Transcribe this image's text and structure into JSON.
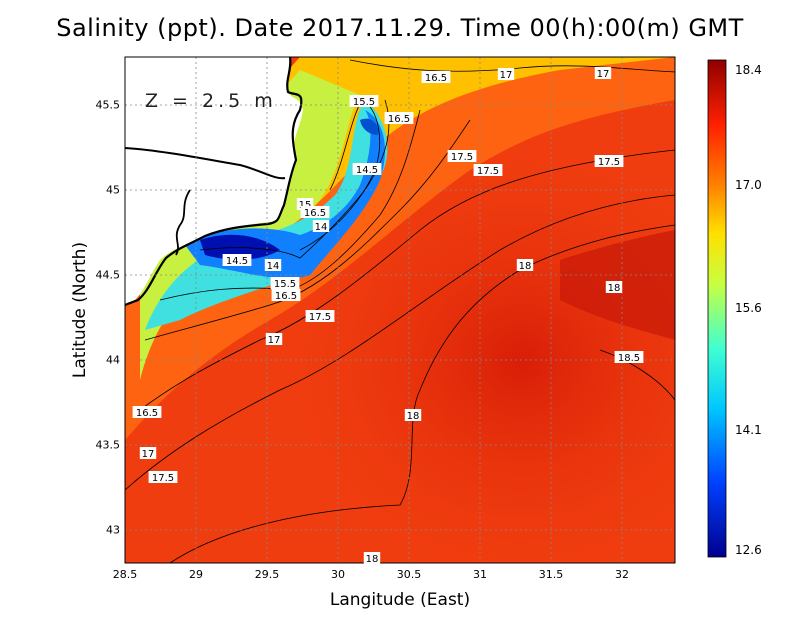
{
  "title": "Salinity (ppt). Date 2017.11.29. Time 00(h):00(m) GMT",
  "depth_label": "Z = 2.5 m",
  "axes": {
    "xlabel": "Langitude (East)",
    "ylabel": "Latitude (North)",
    "x_ticks": [
      "28.5",
      "29",
      "29.5",
      "30",
      "30.5",
      "31",
      "31.5",
      "32"
    ],
    "y_ticks": [
      "45.5",
      "45",
      "44.5",
      "44",
      "43.5",
      "43"
    ]
  },
  "colorbar": {
    "ticks": [
      "18.4",
      "17.0",
      "15.6",
      "14.1",
      "12.6"
    ],
    "min": 12.6,
    "max": 18.4
  },
  "contour_labels": [
    "16.5",
    "17",
    "17",
    "15.5",
    "16.5",
    "17.5",
    "17.5",
    "17.5",
    "14.5",
    "15",
    "16.5",
    "14",
    "14.5",
    "14",
    "15.5",
    "16.5",
    "17.5",
    "17",
    "18",
    "18",
    "18.5",
    "16.5",
    "17",
    "17.5",
    "18",
    "18"
  ],
  "chart_data": {
    "type": "heatmap",
    "variable": "Salinity (ppt)",
    "xlim": [
      28.5,
      32.4
    ],
    "ylim": [
      42.8,
      45.8
    ],
    "value_range": [
      12.6,
      18.4
    ],
    "contour_levels": [
      14,
      14.5,
      15,
      15.5,
      16.5,
      17,
      17.5,
      18,
      18.5
    ]
  }
}
